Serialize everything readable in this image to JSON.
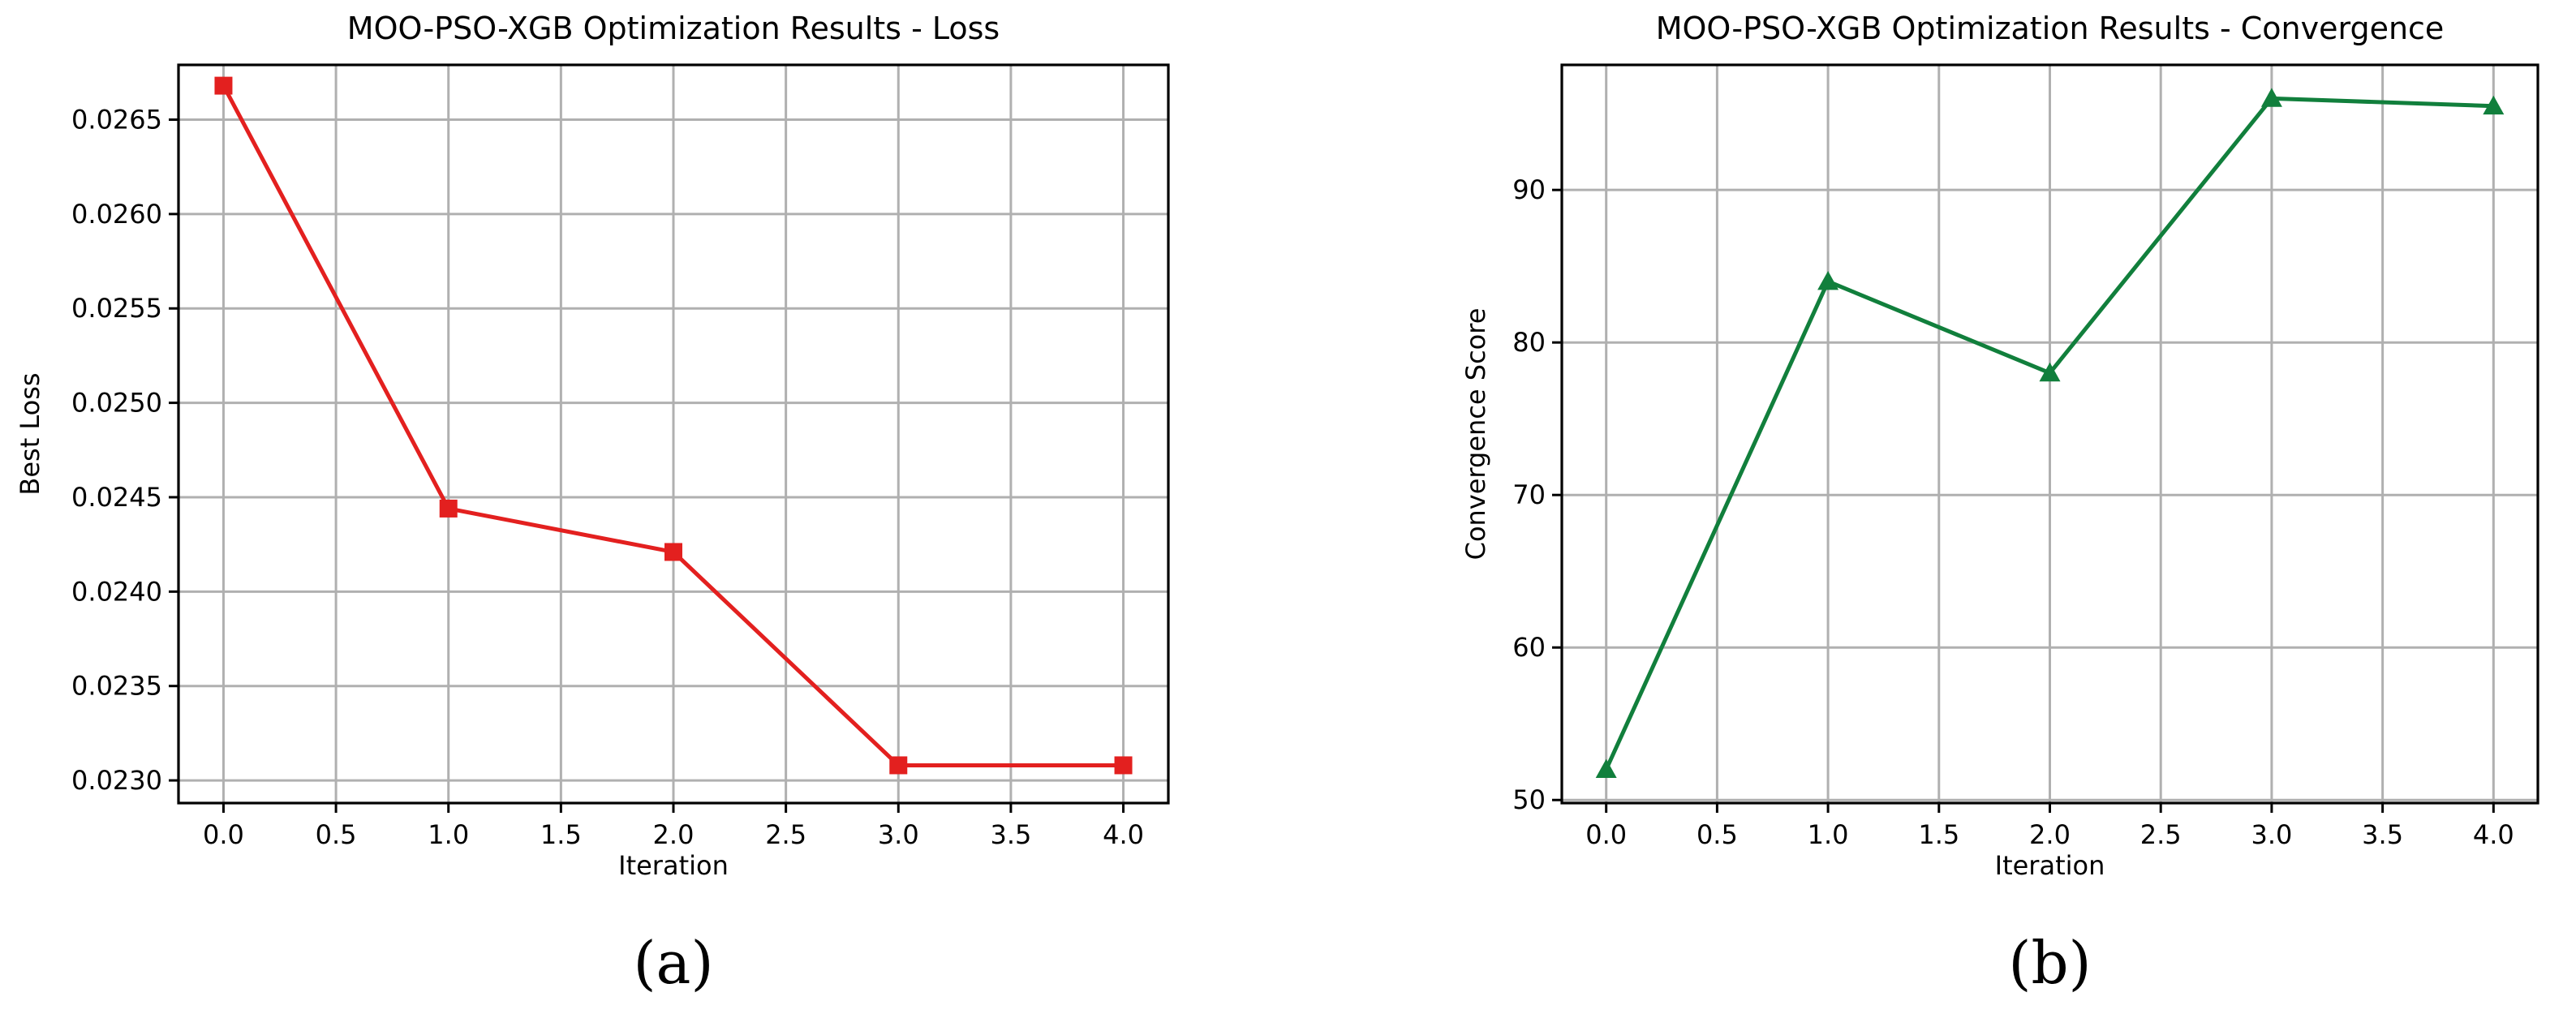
{
  "chart_data": [
    {
      "type": "line",
      "title": "MOO-PSO-XGB Optimization Results - Loss",
      "xlabel": "Iteration",
      "ylabel": "Best Loss",
      "panel_label": "(a)",
      "xlim": [
        -0.2,
        4.2
      ],
      "ylim": [
        0.02288,
        0.02679
      ],
      "xticks": [
        0.0,
        0.5,
        1.0,
        1.5,
        2.0,
        2.5,
        3.0,
        3.5,
        4.0
      ],
      "xtick_labels": [
        "0.0",
        "0.5",
        "1.0",
        "1.5",
        "2.0",
        "2.5",
        "3.0",
        "3.5",
        "4.0"
      ],
      "yticks": [
        0.023,
        0.0235,
        0.024,
        0.0245,
        0.025,
        0.0255,
        0.026,
        0.0265
      ],
      "ytick_labels": [
        "0.0230",
        "0.0235",
        "0.0240",
        "0.0245",
        "0.0250",
        "0.0255",
        "0.0260",
        "0.0265"
      ],
      "grid": true,
      "x": [
        0,
        1,
        2,
        3,
        4
      ],
      "series": [
        {
          "values": [
            0.02668,
            0.02444,
            0.02421,
            0.02308,
            0.02308
          ],
          "color": "#e3201f",
          "marker": "square"
        }
      ]
    },
    {
      "type": "line",
      "title": "MOO-PSO-XGB Optimization Results - Convergence",
      "xlabel": "Iteration",
      "ylabel": "Convergence Score",
      "panel_label": "(b)",
      "xlim": [
        -0.2,
        4.2
      ],
      "ylim": [
        49.8,
        98.2
      ],
      "xticks": [
        0.0,
        0.5,
        1.0,
        1.5,
        2.0,
        2.5,
        3.0,
        3.5,
        4.0
      ],
      "xtick_labels": [
        "0.0",
        "0.5",
        "1.0",
        "1.5",
        "2.0",
        "2.5",
        "3.0",
        "3.5",
        "4.0"
      ],
      "yticks": [
        50,
        60,
        70,
        80,
        90
      ],
      "ytick_labels": [
        "50",
        "60",
        "70",
        "80",
        "90"
      ],
      "grid": true,
      "x": [
        0,
        1,
        2,
        3,
        4
      ],
      "series": [
        {
          "values": [
            52,
            84,
            78,
            96,
            95.5
          ],
          "color": "#117f3c",
          "marker": "triangle"
        }
      ]
    }
  ]
}
